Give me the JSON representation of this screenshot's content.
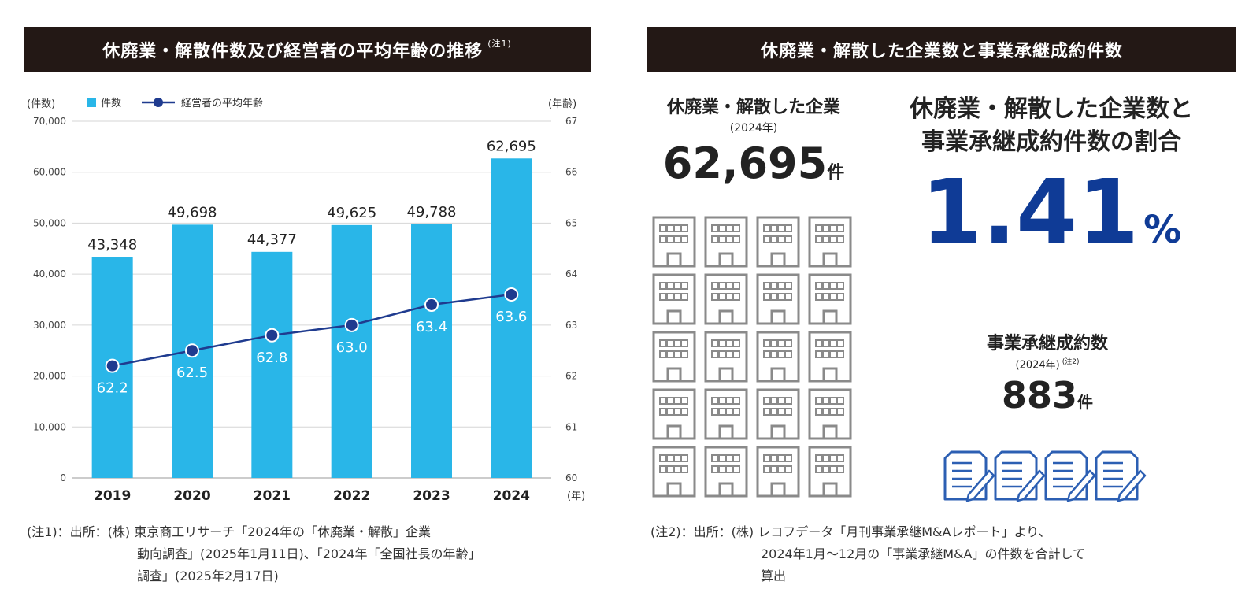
{
  "left_banner": {
    "title": "休廃業・解散件数及び経営者の平均年齢の推移",
    "note_mark": "(注1)"
  },
  "right_banner": {
    "title": "休廃業・解散した企業数と事業承継成約件数"
  },
  "chart_data": {
    "type": "bar",
    "categories": [
      "2019",
      "2020",
      "2021",
      "2022",
      "2023",
      "2024"
    ],
    "series": [
      {
        "name": "件数",
        "type": "bar",
        "axis": "left",
        "values": [
          43348,
          49698,
          44377,
          49625,
          49788,
          62695
        ],
        "labels": [
          "43,348",
          "49,698",
          "44,377",
          "49,625",
          "49,788",
          "62,695"
        ]
      },
      {
        "name": "経営者の平均年齢",
        "type": "line",
        "axis": "right",
        "values": [
          62.2,
          62.5,
          62.8,
          63.0,
          63.4,
          63.6
        ],
        "labels": [
          "62.2",
          "62.5",
          "62.8",
          "63.0",
          "63.4",
          "63.6"
        ]
      }
    ],
    "y_left": {
      "label": "(件数)",
      "range": [
        0,
        70000
      ],
      "ticks": [
        "0",
        "10,000",
        "20,000",
        "30,000",
        "40,000",
        "50,000",
        "60,000",
        "70,000"
      ]
    },
    "y_right": {
      "label": "(年齢)",
      "range": [
        60,
        67
      ],
      "ticks": [
        "60",
        "61",
        "62",
        "63",
        "64",
        "65",
        "66",
        "67"
      ]
    },
    "x_unit": "(年)",
    "grid": true,
    "legend": "top-left",
    "colors": {
      "bar": "#29b6e8",
      "line": "#1f3b8f"
    }
  },
  "note1": {
    "lines": [
      "(注1)：出所：(株) 東京商工リサーチ「2024年の「休廃業・解散」企業",
      "動向調査」(2025年1月11日)、「2024年「全国社長の年齢」",
      "調査」(2025年2月17日)"
    ]
  },
  "closures": {
    "title": "休廃業・解散した企業",
    "year": "(2024年)",
    "value": "62,695",
    "unit": "件",
    "icon": "building-icon"
  },
  "ratio": {
    "title_line1": "休廃業・解散した企業数と",
    "title_line2": "事業承継成約件数の割合",
    "value": "1.41",
    "unit": "%",
    "color": "#0f3b96"
  },
  "succession": {
    "title": "事業承継成約数",
    "year": "(2024年)",
    "note_mark": "(注2)",
    "value": "883",
    "unit": "件",
    "icon": "document-pen-icon",
    "icon_color": "#2c5fb3"
  },
  "note2": {
    "lines": [
      "(注2)：出所：(株) レコフデータ「月刊事業承継M&Aレポート」より、",
      "2024年1月～12月の「事業承継M&A」の件数を合計して",
      "算出"
    ]
  }
}
